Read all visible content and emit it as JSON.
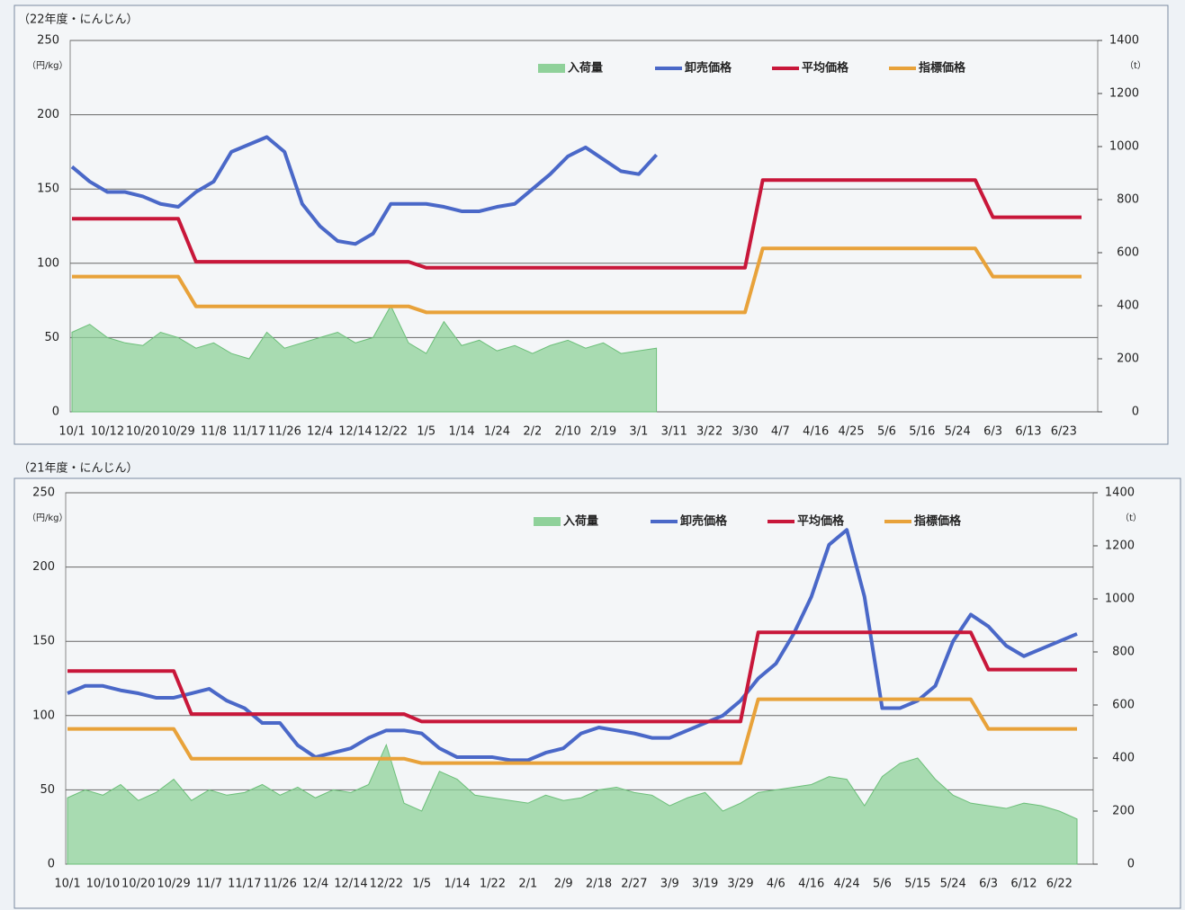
{
  "chart_data": [
    {
      "type": "line",
      "title": "（22年度・にんじん）",
      "y_label": "（円/kg）",
      "y2_label": "（t）",
      "categories": [
        "10/1",
        null,
        "10/12",
        null,
        "10/20",
        null,
        "10/29",
        null,
        "11/8",
        null,
        "11/17",
        null,
        "11/26",
        null,
        "12/4",
        null,
        "12/14",
        null,
        "12/22",
        null,
        "1/5",
        null,
        "1/14",
        null,
        "1/24",
        null,
        "2/2",
        null,
        "2/10",
        null,
        "2/19",
        null,
        "3/1",
        null,
        "3/11",
        null,
        "3/22",
        null,
        "3/30",
        null,
        "4/7",
        null,
        "4/16",
        null,
        "4/25",
        null,
        "5/6",
        null,
        "5/16",
        null,
        "5/24",
        null,
        "6/3",
        null,
        "6/13",
        null,
        "6/23",
        null
      ],
      "ylim": [
        0,
        250
      ],
      "yticks": [
        0,
        50,
        100,
        150,
        200,
        250
      ],
      "y2lim": [
        0,
        1400
      ],
      "y2ticks": [
        0,
        200,
        400,
        600,
        800,
        1000,
        1200,
        1400
      ],
      "grid": true,
      "series": [
        {
          "name": "入荷量",
          "type": "area",
          "axis": "y2",
          "color": "#8fd19a",
          "values": [
            300,
            330,
            280,
            260,
            250,
            300,
            280,
            240,
            260,
            220,
            200,
            300,
            240,
            260,
            280,
            300,
            260,
            280,
            400,
            260,
            220,
            340,
            250,
            270,
            230,
            250,
            220,
            250,
            270,
            240,
            260,
            220,
            230,
            240,
            null,
            null,
            null,
            null,
            null,
            null,
            null,
            null,
            null,
            null,
            null,
            null,
            null,
            null,
            null,
            null,
            null,
            null,
            null,
            null,
            null,
            null,
            null,
            null
          ]
        },
        {
          "name": "卸売価格",
          "type": "line",
          "color": "#4a68c8",
          "values": [
            165,
            155,
            148,
            148,
            145,
            140,
            138,
            148,
            155,
            175,
            180,
            185,
            175,
            140,
            125,
            115,
            113,
            120,
            140,
            140,
            140,
            138,
            135,
            135,
            138,
            140,
            150,
            160,
            172,
            178,
            170,
            162,
            160,
            173,
            null,
            null,
            null,
            null,
            null,
            null,
            null,
            null,
            null,
            null,
            null,
            null,
            null,
            null,
            null,
            null,
            null,
            null,
            null,
            null,
            null,
            null,
            null,
            null
          ]
        },
        {
          "name": "平均価格",
          "type": "line",
          "color": "#c8173a",
          "values": [
            130,
            130,
            130,
            130,
            130,
            130,
            130,
            101,
            101,
            101,
            101,
            101,
            101,
            101,
            101,
            101,
            101,
            101,
            101,
            101,
            97,
            97,
            97,
            97,
            97,
            97,
            97,
            97,
            97,
            97,
            97,
            97,
            97,
            97,
            97,
            97,
            97,
            97,
            97,
            156,
            156,
            156,
            156,
            156,
            156,
            156,
            156,
            156,
            156,
            156,
            156,
            156,
            131,
            131,
            131,
            131,
            131,
            131
          ]
        },
        {
          "name": "指標価格",
          "type": "line",
          "color": "#e8a23a",
          "values": [
            91,
            91,
            91,
            91,
            91,
            91,
            91,
            71,
            71,
            71,
            71,
            71,
            71,
            71,
            71,
            71,
            71,
            71,
            71,
            71,
            67,
            67,
            67,
            67,
            67,
            67,
            67,
            67,
            67,
            67,
            67,
            67,
            67,
            67,
            67,
            67,
            67,
            67,
            67,
            110,
            110,
            110,
            110,
            110,
            110,
            110,
            110,
            110,
            110,
            110,
            110,
            110,
            91,
            91,
            91,
            91,
            91,
            91
          ]
        }
      ]
    },
    {
      "type": "line",
      "title": "（21年度・にんじん）",
      "y_label": "（円/kg）",
      "y2_label": "（t）",
      "categories": [
        "10/1",
        null,
        "10/10",
        null,
        "10/20",
        null,
        "10/29",
        null,
        "11/7",
        null,
        "11/17",
        null,
        "11/26",
        null,
        "12/4",
        null,
        "12/14",
        null,
        "12/22",
        null,
        "1/5",
        null,
        "1/14",
        null,
        "1/22",
        null,
        "2/1",
        null,
        "2/9",
        null,
        "2/18",
        null,
        "2/27",
        null,
        "3/9",
        null,
        "3/19",
        null,
        "3/29",
        null,
        "4/6",
        null,
        "4/16",
        null,
        "4/24",
        null,
        "5/6",
        null,
        "5/15",
        null,
        "5/24",
        null,
        "6/3",
        null,
        "6/12",
        null,
        "6/22",
        null
      ],
      "ylim": [
        0,
        250
      ],
      "yticks": [
        0,
        50,
        100,
        150,
        200,
        250
      ],
      "y2lim": [
        0,
        1400
      ],
      "y2ticks": [
        0,
        200,
        400,
        600,
        800,
        1000,
        1200,
        1400
      ],
      "grid": true,
      "series": [
        {
          "name": "入荷量",
          "type": "area",
          "axis": "y2",
          "color": "#8fd19a",
          "values": [
            250,
            280,
            260,
            300,
            240,
            270,
            320,
            240,
            280,
            260,
            270,
            300,
            260,
            290,
            250,
            280,
            270,
            300,
            450,
            230,
            200,
            350,
            320,
            260,
            250,
            240,
            230,
            260,
            240,
            250,
            280,
            290,
            270,
            260,
            220,
            250,
            270,
            200,
            230,
            270,
            280,
            290,
            300,
            330,
            320,
            220,
            330,
            380,
            400,
            320,
            260,
            230,
            220,
            210,
            230,
            220,
            200,
            170
          ]
        },
        {
          "name": "卸売価格",
          "type": "line",
          "color": "#4a68c8",
          "values": [
            115,
            120,
            120,
            117,
            115,
            112,
            112,
            115,
            118,
            110,
            105,
            95,
            95,
            80,
            72,
            75,
            78,
            85,
            90,
            90,
            88,
            78,
            72,
            72,
            72,
            70,
            70,
            75,
            78,
            88,
            92,
            90,
            88,
            85,
            85,
            90,
            95,
            100,
            110,
            125,
            135,
            155,
            180,
            215,
            225,
            180,
            105,
            105,
            110,
            120,
            150,
            168,
            160,
            147,
            140,
            145,
            150,
            155
          ]
        },
        {
          "name": "平均価格",
          "type": "line",
          "color": "#c8173a",
          "values": [
            130,
            130,
            130,
            130,
            130,
            130,
            130,
            101,
            101,
            101,
            101,
            101,
            101,
            101,
            101,
            101,
            101,
            101,
            101,
            101,
            96,
            96,
            96,
            96,
            96,
            96,
            96,
            96,
            96,
            96,
            96,
            96,
            96,
            96,
            96,
            96,
            96,
            96,
            96,
            156,
            156,
            156,
            156,
            156,
            156,
            156,
            156,
            156,
            156,
            156,
            156,
            156,
            131,
            131,
            131,
            131,
            131,
            131
          ]
        },
        {
          "name": "指標価格",
          "type": "line",
          "color": "#e8a23a",
          "values": [
            91,
            91,
            91,
            91,
            91,
            91,
            91,
            71,
            71,
            71,
            71,
            71,
            71,
            71,
            71,
            71,
            71,
            71,
            71,
            71,
            68,
            68,
            68,
            68,
            68,
            68,
            68,
            68,
            68,
            68,
            68,
            68,
            68,
            68,
            68,
            68,
            68,
            68,
            68,
            111,
            111,
            111,
            111,
            111,
            111,
            111,
            111,
            111,
            111,
            111,
            111,
            111,
            91,
            91,
            91,
            91,
            91,
            91
          ]
        }
      ]
    }
  ]
}
